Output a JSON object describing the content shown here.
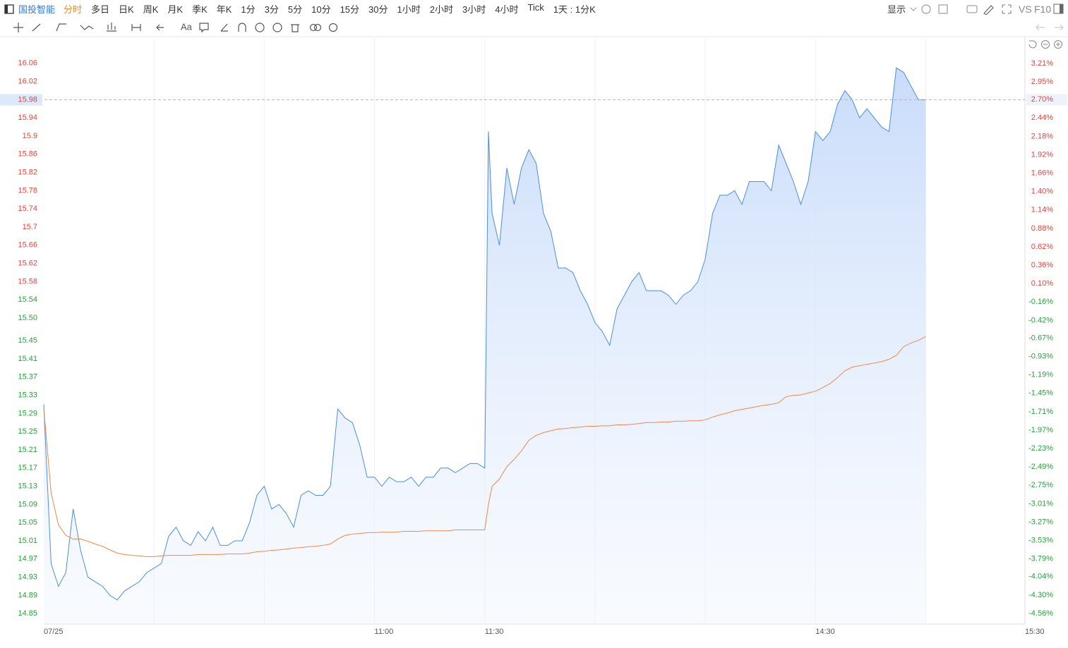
{
  "toolbar": {
    "stock": "国投智能",
    "periods": [
      "分时",
      "多日",
      "日K",
      "周K",
      "月K",
      "季K",
      "年K",
      "1分",
      "3分",
      "5分",
      "10分",
      "15分",
      "30分",
      "1小时",
      "2小时",
      "3小时",
      "4小时",
      "Tick",
      "1天 : 1分K"
    ],
    "active": 0,
    "display": "显示",
    "vs": "VS",
    "f10": "F10",
    "text_tool": "Aa"
  },
  "chart_data": {
    "type": "line",
    "x": [
      0,
      2,
      4,
      6,
      8,
      10,
      12,
      14,
      16,
      18,
      20,
      22,
      24,
      26,
      28,
      30,
      32,
      34,
      36,
      38,
      40,
      42,
      44,
      46,
      48,
      50,
      52,
      54,
      56,
      58,
      60,
      62,
      64,
      66,
      68,
      70,
      72,
      74,
      76,
      78,
      80,
      82,
      84,
      86,
      88,
      90,
      92,
      94,
      96,
      98,
      100,
      102,
      104,
      106,
      108,
      110,
      112,
      114,
      116,
      118,
      120,
      121,
      122,
      124,
      126,
      128,
      130,
      132,
      134,
      136,
      138,
      140,
      142,
      144,
      146,
      148,
      150,
      152,
      154,
      156,
      158,
      160,
      162,
      164,
      166,
      168,
      170,
      172,
      174,
      176,
      178,
      180,
      182,
      184,
      186,
      188,
      190,
      192,
      194,
      196,
      198,
      200,
      202,
      204,
      206,
      208,
      210,
      212,
      214,
      216,
      218,
      220,
      222,
      224,
      226,
      228,
      230,
      232,
      234,
      236,
      238,
      240
    ],
    "series": [
      {
        "color": "#4a8fe0",
        "values": [
          15.31,
          14.96,
          14.91,
          14.94,
          15.08,
          14.99,
          14.93,
          14.92,
          14.91,
          14.89,
          14.88,
          14.9,
          14.91,
          14.92,
          14.94,
          14.95,
          14.96,
          15.02,
          15.04,
          15.01,
          15.0,
          15.03,
          15.01,
          15.04,
          15.0,
          15.0,
          15.01,
          15.01,
          15.05,
          15.11,
          15.13,
          15.08,
          15.09,
          15.07,
          15.04,
          15.11,
          15.12,
          15.11,
          15.11,
          15.13,
          15.3,
          15.28,
          15.27,
          15.22,
          15.15,
          15.15,
          15.13,
          15.15,
          15.14,
          15.14,
          15.15,
          15.13,
          15.15,
          15.15,
          15.17,
          15.17,
          15.16,
          15.17,
          15.18,
          15.18,
          15.17,
          15.91,
          15.73,
          15.66,
          15.83,
          15.75,
          15.83,
          15.87,
          15.84,
          15.73,
          15.69,
          15.61,
          15.61,
          15.6,
          15.56,
          15.53,
          15.49,
          15.47,
          15.44,
          15.52,
          15.55,
          15.58,
          15.6,
          15.56,
          15.56,
          15.56,
          15.55,
          15.53,
          15.55,
          15.56,
          15.58,
          15.63,
          15.73,
          15.77,
          15.77,
          15.78,
          15.75,
          15.8,
          15.8,
          15.8,
          15.78,
          15.88,
          15.84,
          15.8,
          15.75,
          15.8,
          15.91,
          15.89,
          15.91,
          15.97,
          16.0,
          15.98,
          15.94,
          15.96,
          15.94,
          15.92,
          15.91,
          16.05,
          16.04,
          16.01,
          15.98,
          15.98
        ]
      },
      {
        "color": "#f2874a",
        "values": [
          15.301,
          15.115,
          15.045,
          15.022,
          15.014,
          15.014,
          15.009,
          15.003,
          14.998,
          14.99,
          14.983,
          14.98,
          14.978,
          14.977,
          14.975,
          14.975,
          14.977,
          14.978,
          14.978,
          14.978,
          14.978,
          14.98,
          14.98,
          14.98,
          14.98,
          14.981,
          14.981,
          14.981,
          14.983,
          14.986,
          14.987,
          14.989,
          14.99,
          14.992,
          14.994,
          14.995,
          14.997,
          14.998,
          15.0,
          15.003,
          15.014,
          15.022,
          15.025,
          15.026,
          15.028,
          15.028,
          15.029,
          15.029,
          15.029,
          15.031,
          15.031,
          15.031,
          15.032,
          15.032,
          15.032,
          15.032,
          15.034,
          15.034,
          15.034,
          15.034,
          15.034,
          15.09,
          15.13,
          15.146,
          15.173,
          15.189,
          15.208,
          15.231,
          15.242,
          15.248,
          15.252,
          15.256,
          15.257,
          15.259,
          15.26,
          15.262,
          15.262,
          15.263,
          15.263,
          15.265,
          15.265,
          15.266,
          15.268,
          15.27,
          15.27,
          15.271,
          15.271,
          15.273,
          15.273,
          15.274,
          15.274,
          15.276,
          15.282,
          15.287,
          15.291,
          15.296,
          15.299,
          15.302,
          15.305,
          15.308,
          15.31,
          15.314,
          15.327,
          15.33,
          15.331,
          15.335,
          15.339,
          15.347,
          15.356,
          15.369,
          15.384,
          15.392,
          15.395,
          15.398,
          15.401,
          15.404,
          15.409,
          15.418,
          15.437,
          15.445,
          15.451,
          15.459
        ]
      }
    ],
    "xlim": [
      0,
      267
    ],
    "xticks": [
      {
        "value": 0,
        "label": "07/25"
      },
      {
        "value": 90,
        "label": "11:00"
      },
      {
        "value": 120,
        "label": "11:30"
      },
      {
        "value": 210,
        "label": "14:30"
      },
      {
        "value": 267,
        "label": "15:30"
      }
    ],
    "xgrid": [
      30,
      60,
      90,
      120,
      150,
      180,
      210,
      240
    ],
    "ylim": [
      14.827,
      16.114
    ],
    "yticks": [
      16.06,
      16.02,
      15.98,
      15.94,
      15.9,
      15.86,
      15.82,
      15.78,
      15.74,
      15.7,
      15.66,
      15.62,
      15.58,
      15.54,
      {
        "value": 15.5,
        "label": "15.50"
      },
      15.45,
      15.41,
      15.37,
      15.33,
      15.29,
      15.25,
      15.21,
      15.17,
      15.13,
      15.09,
      15.05,
      15.01,
      14.97,
      14.93,
      14.89,
      14.85
    ],
    "y2lim": [
      -4.709,
      3.559
    ],
    "y2ticks": [
      {
        "value": 3.21,
        "label": "3.21%"
      },
      {
        "value": 2.95,
        "label": "2.95%"
      },
      {
        "value": 2.7,
        "label": "2.70%"
      },
      {
        "value": 2.44,
        "label": "2.44%"
      },
      {
        "value": 2.18,
        "label": "2.18%"
      },
      {
        "value": 1.92,
        "label": "1.92%"
      },
      {
        "value": 1.66,
        "label": "1.66%"
      },
      {
        "value": 1.4,
        "label": "1.40%"
      },
      {
        "value": 1.14,
        "label": "1.14%"
      },
      {
        "value": 0.88,
        "label": "0.88%"
      },
      {
        "value": 0.62,
        "label": "0.62%"
      },
      {
        "value": 0.36,
        "label": "0.36%"
      },
      {
        "value": 0.1,
        "label": "0.10%"
      },
      {
        "value": -0.16,
        "label": "-0.16%"
      },
      {
        "value": -0.42,
        "label": "-0.42%"
      },
      {
        "value": -0.67,
        "label": "-0.67%"
      },
      {
        "value": -0.93,
        "label": "-0.93%"
      },
      {
        "value": -1.19,
        "label": "-1.19%"
      },
      {
        "value": -1.45,
        "label": "-1.45%"
      },
      {
        "value": -1.71,
        "label": "-1.71%"
      },
      {
        "value": -1.97,
        "label": "-1.97%"
      },
      {
        "value": -2.23,
        "label": "-2.23%"
      },
      {
        "value": -2.49,
        "label": "-2.49%"
      },
      {
        "value": -2.75,
        "label": "-2.75%"
      },
      {
        "value": -3.01,
        "label": "-3.01%"
      },
      {
        "value": -3.27,
        "label": "-3.27%"
      },
      {
        "value": -3.53,
        "label": "-3.53%"
      },
      {
        "value": -3.79,
        "label": "-3.79%"
      },
      {
        "value": -4.04,
        "label": "-4.04%"
      },
      {
        "value": -4.3,
        "label": "-4.30%"
      },
      {
        "value": -4.56,
        "label": "-4.56%"
      }
    ],
    "crosshair": 15.98,
    "up_color": "#e8413a",
    "down_color": "#23a23a",
    "grid": true
  }
}
